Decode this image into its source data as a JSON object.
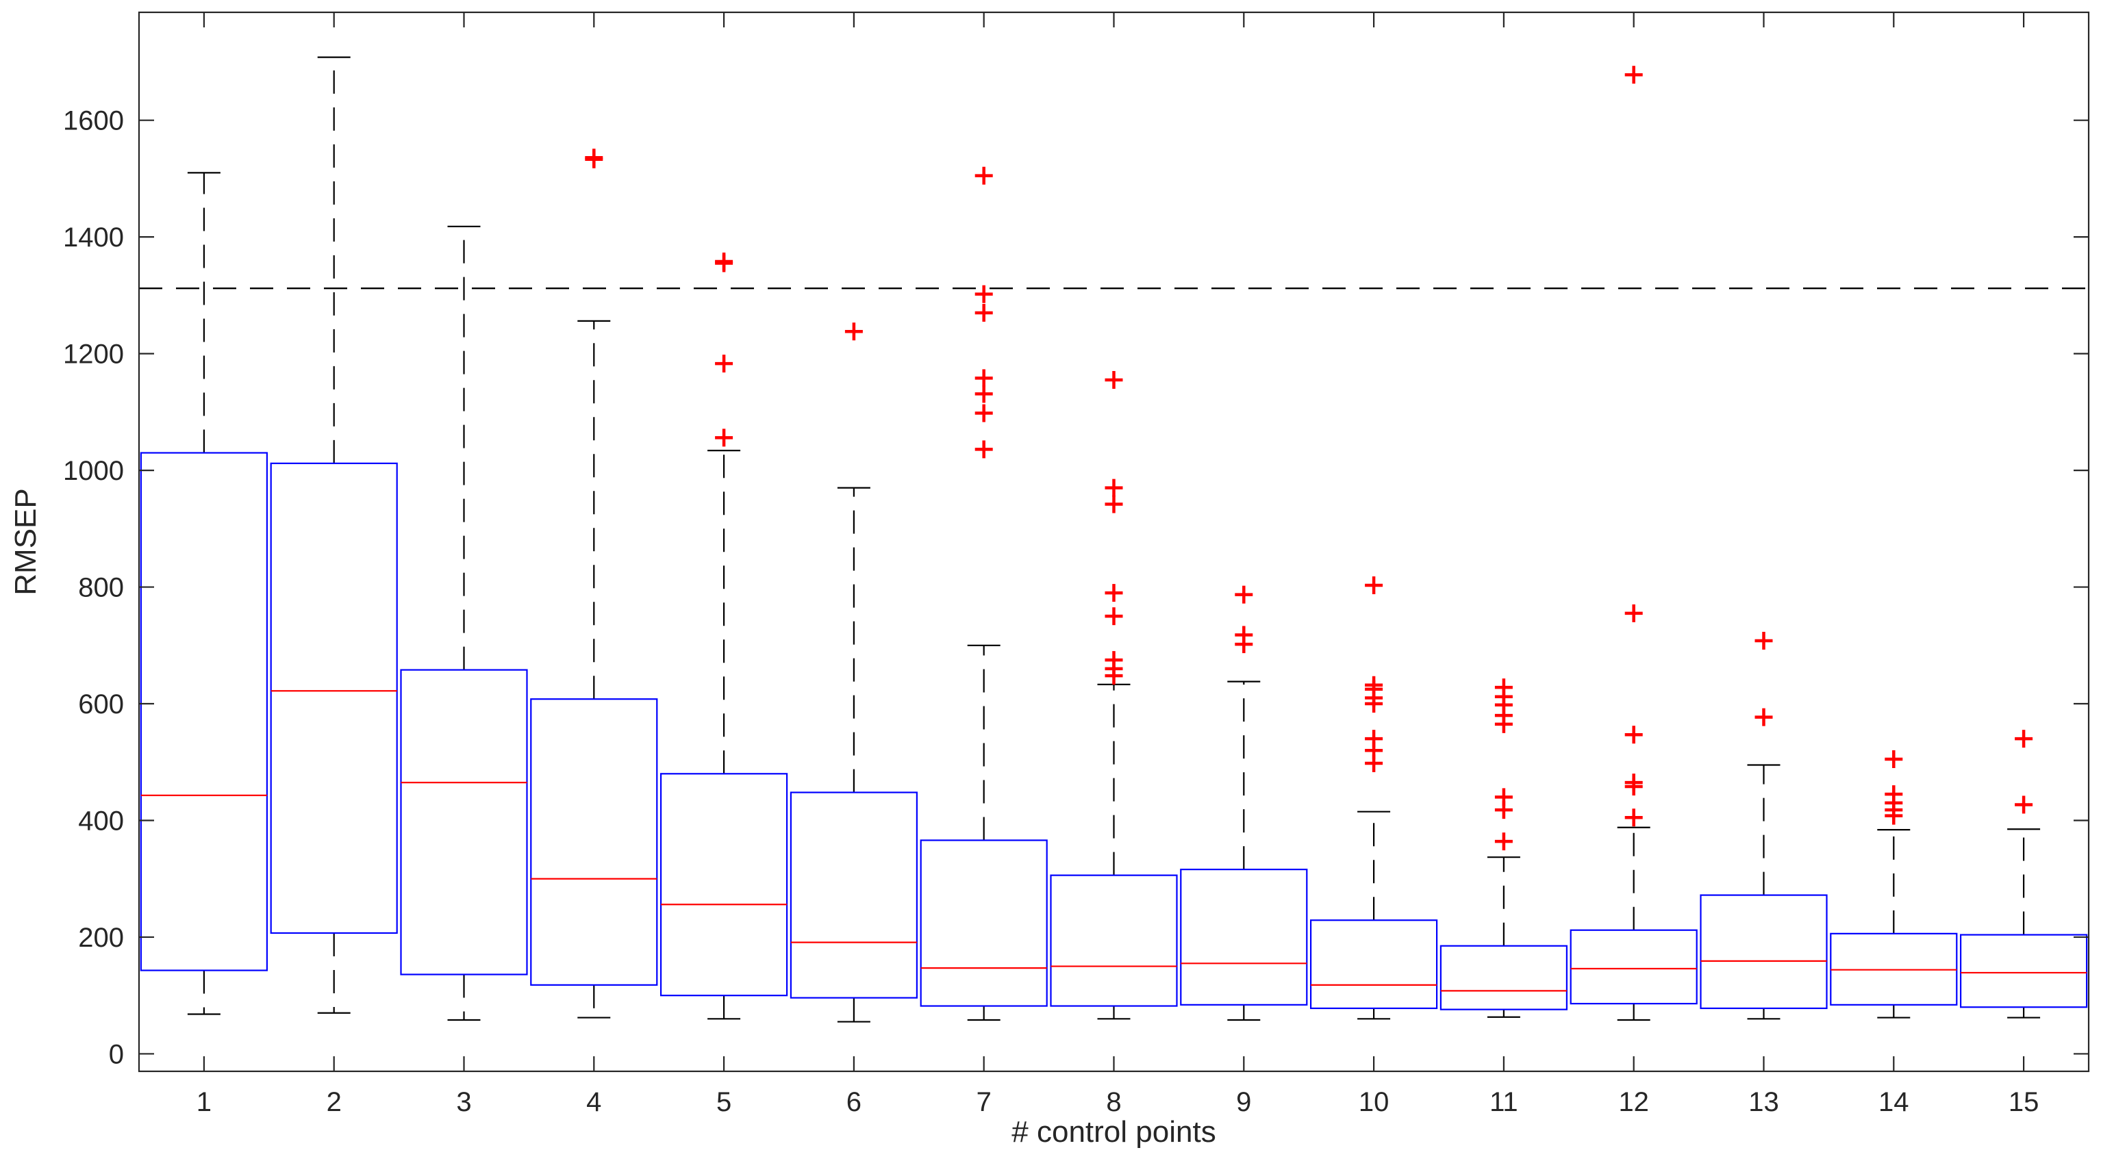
{
  "chart_data": {
    "type": "boxplot",
    "title": "",
    "xlabel": "# control points",
    "ylabel": "RMSEP",
    "xlim": [
      0.5,
      15.5
    ],
    "ylim": [
      -30,
      1785
    ],
    "yticks": [
      0,
      200,
      400,
      600,
      800,
      1000,
      1200,
      1400,
      1600
    ],
    "ytick_labels": [
      "0",
      "200",
      "400",
      "600",
      "800",
      "1000",
      "1200",
      "1400",
      "1600"
    ],
    "categories": [
      "1",
      "2",
      "3",
      "4",
      "5",
      "6",
      "7",
      "8",
      "9",
      "10",
      "11",
      "12",
      "13",
      "14",
      "15"
    ],
    "reference_line": {
      "y": 1312,
      "style": "dashed"
    },
    "colors": {
      "box": "#0000ff",
      "median": "#ff0000",
      "whisker": "#000000",
      "outlier": "#ff0000",
      "axes": "#262626"
    },
    "boxes": [
      {
        "label": "1",
        "lower_whisker": 68,
        "q1": 143,
        "median": 443,
        "q3": 1030,
        "upper_whisker": 1510,
        "outliers": []
      },
      {
        "label": "2",
        "lower_whisker": 70,
        "q1": 207,
        "median": 622,
        "q3": 1012,
        "upper_whisker": 1708,
        "outliers": []
      },
      {
        "label": "3",
        "lower_whisker": 58,
        "q1": 136,
        "median": 465,
        "q3": 658,
        "upper_whisker": 1418,
        "outliers": []
      },
      {
        "label": "4",
        "lower_whisker": 62,
        "q1": 118,
        "median": 300,
        "q3": 608,
        "upper_whisker": 1256,
        "outliers": [
          1533,
          1536
        ]
      },
      {
        "label": "5",
        "lower_whisker": 60,
        "q1": 100,
        "median": 256,
        "q3": 480,
        "upper_whisker": 1034,
        "outliers": [
          1056,
          1183,
          1355,
          1358
        ]
      },
      {
        "label": "6",
        "lower_whisker": 55,
        "q1": 96,
        "median": 191,
        "q3": 448,
        "upper_whisker": 970,
        "outliers": [
          1238
        ]
      },
      {
        "label": "7",
        "lower_whisker": 58,
        "q1": 82,
        "median": 147,
        "q3": 366,
        "upper_whisker": 700,
        "outliers": [
          1036,
          1098,
          1131,
          1158,
          1270,
          1302,
          1505
        ]
      },
      {
        "label": "8",
        "lower_whisker": 60,
        "q1": 82,
        "median": 150,
        "q3": 306,
        "upper_whisker": 633,
        "outliers": [
          648,
          660,
          675,
          750,
          790,
          942,
          970,
          1155
        ]
      },
      {
        "label": "9",
        "lower_whisker": 58,
        "q1": 84,
        "median": 155,
        "q3": 316,
        "upper_whisker": 638,
        "outliers": [
          702,
          718,
          787
        ]
      },
      {
        "label": "10",
        "lower_whisker": 60,
        "q1": 78,
        "median": 118,
        "q3": 229,
        "upper_whisker": 415,
        "outliers": [
          498,
          520,
          540,
          600,
          610,
          625,
          632,
          803
        ]
      },
      {
        "label": "11",
        "lower_whisker": 63,
        "q1": 76,
        "median": 108,
        "q3": 185,
        "upper_whisker": 337,
        "outliers": [
          364,
          418,
          440,
          565,
          580,
          598,
          612,
          628
        ]
      },
      {
        "label": "12",
        "lower_whisker": 58,
        "q1": 86,
        "median": 146,
        "q3": 212,
        "upper_whisker": 388,
        "outliers": [
          405,
          458,
          465,
          547,
          755,
          1678
        ]
      },
      {
        "label": "13",
        "lower_whisker": 60,
        "q1": 78,
        "median": 159,
        "q3": 272,
        "upper_whisker": 495,
        "outliers": [
          577,
          708
        ]
      },
      {
        "label": "14",
        "lower_whisker": 62,
        "q1": 84,
        "median": 144,
        "q3": 206,
        "upper_whisker": 384,
        "outliers": [
          408,
          418,
          430,
          445,
          505
        ]
      },
      {
        "label": "15",
        "lower_whisker": 62,
        "q1": 80,
        "median": 139,
        "q3": 204,
        "upper_whisker": 385,
        "outliers": [
          427,
          540
        ]
      }
    ]
  }
}
